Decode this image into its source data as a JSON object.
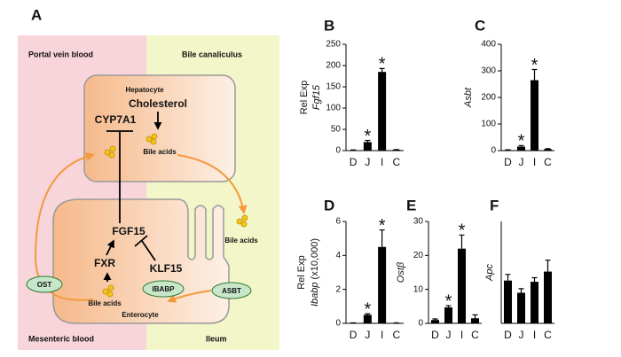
{
  "diagram": {
    "panel": "A",
    "regions": [
      "Portal vein blood",
      "Bile canaliculus",
      "Mesenteric blood",
      "Ileum"
    ],
    "cells": [
      "Hepatocyte",
      "Enterocyte"
    ],
    "molecules": [
      "Cholesterol",
      "CYP7A1",
      "FGF15",
      "FXR",
      "KLF15"
    ],
    "bile_acids": [
      "Bile acids",
      "Bile acids",
      "Bile acids"
    ],
    "transporters": [
      "OST",
      "IBABP",
      "ASBT"
    ]
  },
  "chart_data": [
    {
      "type": "bar",
      "panel": "B",
      "ylabel": [
        [
          {
            "text": "Rel Exp"
          }
        ],
        [
          {
            "text": "Fgf15",
            "italic": true
          }
        ]
      ],
      "categories": [
        "D",
        "J",
        "I",
        "C"
      ],
      "values": [
        1,
        20,
        185,
        2
      ],
      "errors": [
        0.5,
        4,
        8,
        0.5
      ],
      "markers": [
        null,
        "*",
        "*",
        null
      ],
      "color": "#000000",
      "ylim": [
        0,
        250
      ],
      "yticks": [
        0,
        50,
        100,
        150,
        200,
        250
      ]
    },
    {
      "type": "bar",
      "panel": "C",
      "ylabel": [
        [
          {
            "text": "Asbt",
            "italic": true
          }
        ]
      ],
      "categories": [
        "D",
        "J",
        "I",
        "C"
      ],
      "values": [
        2,
        15,
        265,
        5
      ],
      "errors": [
        1,
        4,
        40,
        2
      ],
      "markers": [
        null,
        "*",
        "*",
        null
      ],
      "color": "#000000",
      "ylim": [
        0,
        400
      ],
      "yticks": [
        0,
        100,
        200,
        300,
        400
      ]
    },
    {
      "type": "bar",
      "panel": "D",
      "ylabel": [
        [
          {
            "text": "Rel Exp"
          }
        ],
        [
          {
            "text": "Ibabp",
            "italic": true
          },
          {
            "text": " (x10,000)"
          }
        ]
      ],
      "categories": [
        "D",
        "J",
        "I",
        "C"
      ],
      "values": [
        0.02,
        0.5,
        4.5,
        0.02
      ],
      "errors": [
        0.01,
        0.06,
        1.0,
        0.01
      ],
      "markers": [
        null,
        "*",
        "*",
        null
      ],
      "color": "#000000",
      "ylim": [
        0,
        6
      ],
      "yticks": [
        0,
        2,
        4,
        6
      ]
    },
    {
      "type": "bar",
      "panel": "E",
      "ylabel": [
        [
          {
            "text": "Ostβ",
            "italic": true
          }
        ]
      ],
      "categories": [
        "D",
        "J",
        "I",
        "C"
      ],
      "values": [
        1,
        4.7,
        22,
        1.5
      ],
      "errors": [
        0.3,
        0.5,
        4,
        1
      ],
      "markers": [
        null,
        "*",
        "*",
        null
      ],
      "color": "#000000",
      "ylim": [
        0,
        30
      ],
      "yticks": [
        0,
        10,
        20,
        30
      ]
    },
    {
      "type": "bar",
      "panel": "F",
      "ylabel": [
        [
          {
            "text": "Apc",
            "italic": true
          }
        ]
      ],
      "categories": [
        "D",
        "J",
        "I",
        "C"
      ],
      "values": [
        1.05,
        0.75,
        1.02,
        1.27
      ],
      "errors": [
        0.15,
        0.1,
        0.1,
        0.28
      ],
      "markers": [
        null,
        null,
        null,
        null
      ],
      "color": "#000000",
      "ylim": [
        0,
        2.5
      ]
    }
  ]
}
